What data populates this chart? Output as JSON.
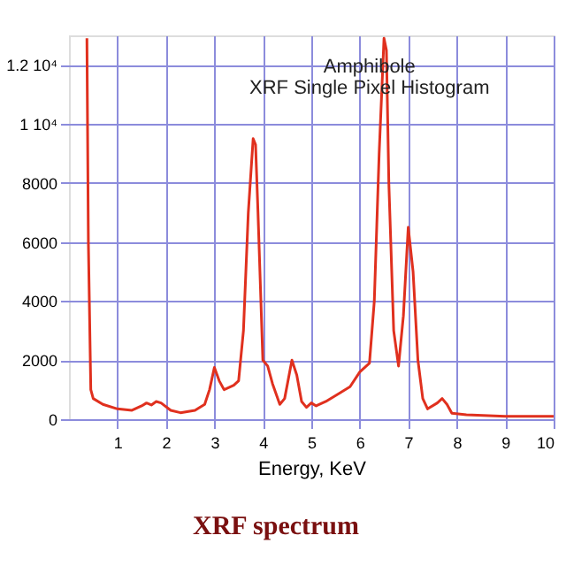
{
  "chart_data": {
    "type": "line",
    "title": "Amphibole",
    "subtitle": "XRF Single Pixel Histogram",
    "xlabel": "Energy, KeV",
    "annotations": [
      "XRF spectrum"
    ],
    "x": [
      0.37,
      0.4,
      0.45,
      0.5,
      0.7,
      1.0,
      1.3,
      1.5,
      1.6,
      1.7,
      1.8,
      1.9,
      2.1,
      2.3,
      2.6,
      2.8,
      2.9,
      3.0,
      3.1,
      3.2,
      3.4,
      3.5,
      3.6,
      3.7,
      3.8,
      3.85,
      3.9,
      4.0,
      4.1,
      4.2,
      4.35,
      4.45,
      4.6,
      4.7,
      4.8,
      4.9,
      5.0,
      5.1,
      5.3,
      5.6,
      5.8,
      6.0,
      6.2,
      6.3,
      6.4,
      6.5,
      6.55,
      6.6,
      6.7,
      6.8,
      6.9,
      7.0,
      7.1,
      7.2,
      7.3,
      7.4,
      7.6,
      7.7,
      7.8,
      7.9,
      8.2,
      9.0,
      10.0
    ],
    "series": [
      {
        "color": "#e0301e",
        "values": [
          12900,
          6000,
          1000,
          700,
          500,
          350,
          300,
          450,
          550,
          480,
          600,
          550,
          300,
          220,
          300,
          500,
          1000,
          1750,
          1300,
          1000,
          1150,
          1300,
          3000,
          7000,
          9500,
          9300,
          7000,
          2000,
          1800,
          1200,
          500,
          700,
          2000,
          1500,
          600,
          400,
          550,
          450,
          600,
          900,
          1100,
          1600,
          1900,
          4000,
          9000,
          12900,
          12500,
          8000,
          3000,
          1800,
          3500,
          6500,
          5000,
          2000,
          700,
          350,
          550,
          700,
          500,
          200,
          150,
          100,
          100
        ]
      }
    ],
    "xlim": [
      0,
      10
    ],
    "ylim": [
      0,
      13000
    ],
    "xticks": [
      1,
      2,
      3,
      4,
      5,
      6,
      7,
      8,
      9,
      10
    ],
    "yticks": [
      0,
      2000,
      4000,
      6000,
      8000,
      {
        "value": 10000,
        "label": "1 10⁴"
      },
      {
        "value": 12000,
        "label": "1.2 10⁴"
      }
    ],
    "grid": true,
    "marker": "none",
    "line_style": "solid"
  }
}
